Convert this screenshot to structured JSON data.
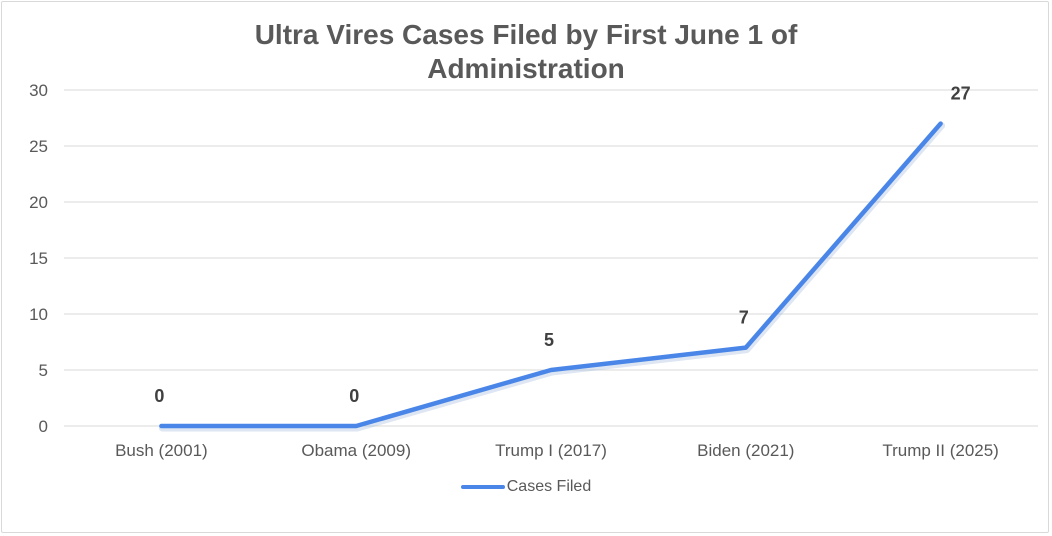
{
  "chart_data": {
    "type": "line",
    "title_lines": [
      "Ultra Vires Cases Filed by First June 1 of",
      "Administration"
    ],
    "categories": [
      "Bush (2001)",
      "Obama (2009)",
      "Trump I (2017)",
      "Biden (2021)",
      "Trump II (2025)"
    ],
    "series": [
      {
        "name": "Cases Filed",
        "values": [
          0,
          0,
          5,
          7,
          27
        ],
        "color": "#4a86e8"
      }
    ],
    "ylim": [
      0,
      30
    ],
    "yticks": [
      0,
      5,
      10,
      15,
      20,
      25,
      30
    ],
    "grid": true,
    "legend": "bottom"
  }
}
